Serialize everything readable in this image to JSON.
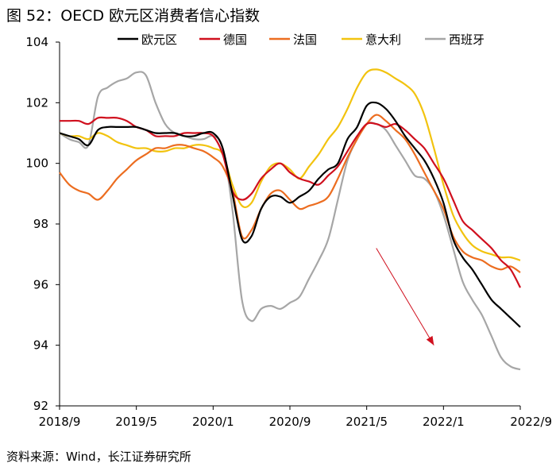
{
  "figure_title": "图 52：OECD 欧元区消费者信心指数",
  "source_note": "资料来源：Wind，长江证券研究所",
  "chart_data": {
    "type": "line",
    "title": "OECD 欧元区消费者信心指数",
    "xlabel": "",
    "ylabel": "",
    "ylim": [
      92,
      104
    ],
    "yticks": [
      92,
      94,
      96,
      98,
      100,
      102,
      104
    ],
    "x_ticks": [
      "2018/9",
      "2019/5",
      "2020/1",
      "2020/9",
      "2021/5",
      "2022/1",
      "2022/9"
    ],
    "x_tick_index": [
      0,
      8,
      16,
      24,
      32,
      40,
      48
    ],
    "x": [
      "2018/9",
      "2018/10",
      "2018/11",
      "2018/12",
      "2019/1",
      "2019/2",
      "2019/3",
      "2019/4",
      "2019/5",
      "2019/6",
      "2019/7",
      "2019/8",
      "2019/9",
      "2019/10",
      "2019/11",
      "2019/12",
      "2020/1",
      "2020/2",
      "2020/3",
      "2020/4",
      "2020/5",
      "2020/6",
      "2020/7",
      "2020/8",
      "2020/9",
      "2020/10",
      "2020/11",
      "2020/12",
      "2021/1",
      "2021/2",
      "2021/3",
      "2021/4",
      "2021/5",
      "2021/6",
      "2021/7",
      "2021/8",
      "2021/9",
      "2021/10",
      "2021/11",
      "2021/12",
      "2022/1",
      "2022/2",
      "2022/3",
      "2022/4",
      "2022/5",
      "2022/6",
      "2022/7",
      "2022/8",
      "2022/9"
    ],
    "series": [
      {
        "name": "欧元区",
        "color": "#000000",
        "values": [
          101.0,
          100.9,
          100.8,
          100.6,
          101.1,
          101.2,
          101.2,
          101.2,
          101.2,
          101.1,
          101.0,
          101.0,
          101.0,
          100.9,
          100.9,
          101.0,
          101.0,
          100.5,
          99.0,
          97.5,
          97.6,
          98.5,
          98.9,
          98.9,
          98.7,
          98.9,
          99.1,
          99.5,
          99.8,
          100.0,
          100.8,
          101.2,
          101.9,
          102.0,
          101.8,
          101.4,
          100.9,
          100.5,
          100.1,
          99.5,
          98.7,
          97.5,
          96.9,
          96.5,
          96.0,
          95.5,
          95.2,
          94.9,
          94.6
        ]
      },
      {
        "name": "德国",
        "color": "#d0101e",
        "values": [
          101.4,
          101.4,
          101.4,
          101.3,
          101.5,
          101.5,
          101.5,
          101.4,
          101.2,
          101.1,
          100.9,
          100.9,
          100.9,
          101.0,
          101.0,
          101.0,
          100.9,
          100.3,
          99.1,
          98.8,
          99.0,
          99.5,
          99.8,
          100.0,
          99.7,
          99.5,
          99.4,
          99.3,
          99.6,
          99.9,
          100.4,
          100.9,
          101.3,
          101.3,
          101.2,
          101.3,
          101.1,
          100.8,
          100.5,
          100.0,
          99.5,
          98.8,
          98.1,
          97.8,
          97.5,
          97.2,
          96.8,
          96.5,
          95.9
        ]
      },
      {
        "name": "法国",
        "color": "#ec6d20",
        "values": [
          99.7,
          99.3,
          99.1,
          99.0,
          98.8,
          99.1,
          99.5,
          99.8,
          100.1,
          100.3,
          100.5,
          100.5,
          100.6,
          100.6,
          100.5,
          100.4,
          100.2,
          99.9,
          99.1,
          97.6,
          97.8,
          98.5,
          99.0,
          99.1,
          98.8,
          98.5,
          98.6,
          98.7,
          98.9,
          99.5,
          100.2,
          100.8,
          101.3,
          101.6,
          101.4,
          101.1,
          100.8,
          100.3,
          99.7,
          99.1,
          98.5,
          97.6,
          97.1,
          96.9,
          96.8,
          96.6,
          96.5,
          96.6,
          96.4
        ]
      },
      {
        "name": "意大利",
        "color": "#f2c30f",
        "values": [
          101.0,
          100.9,
          100.9,
          100.8,
          101.0,
          100.9,
          100.7,
          100.6,
          100.5,
          100.5,
          100.4,
          100.4,
          100.5,
          100.5,
          100.6,
          100.6,
          100.5,
          100.3,
          99.3,
          98.6,
          98.7,
          99.4,
          99.9,
          100.0,
          99.8,
          99.5,
          99.9,
          100.3,
          100.8,
          101.2,
          101.8,
          102.5,
          103.0,
          103.1,
          103.0,
          102.8,
          102.6,
          102.3,
          101.6,
          100.5,
          99.3,
          98.3,
          97.7,
          97.3,
          97.1,
          97.0,
          96.9,
          96.9,
          96.8
        ]
      },
      {
        "name": "西班牙",
        "color": "#a6a6a6",
        "values": [
          101.0,
          100.8,
          100.7,
          100.6,
          102.2,
          102.5,
          102.7,
          102.8,
          103.0,
          102.9,
          102.0,
          101.3,
          101.0,
          100.9,
          100.8,
          100.8,
          100.9,
          100.5,
          98.5,
          95.5,
          94.8,
          95.2,
          95.3,
          95.2,
          95.4,
          95.6,
          96.2,
          96.8,
          97.5,
          98.8,
          100.1,
          100.8,
          101.3,
          101.3,
          101.1,
          100.6,
          100.1,
          99.6,
          99.5,
          99.1,
          98.3,
          97.2,
          96.1,
          95.5,
          95.0,
          94.3,
          93.6,
          93.3,
          93.2
        ]
      }
    ],
    "annotations": [
      {
        "type": "arrow",
        "color": "#d0101e",
        "from": {
          "x": "2021/6",
          "y": 97.2
        },
        "to": {
          "x": "2021/12",
          "y": 94.0
        }
      }
    ],
    "legend_position": "top"
  }
}
